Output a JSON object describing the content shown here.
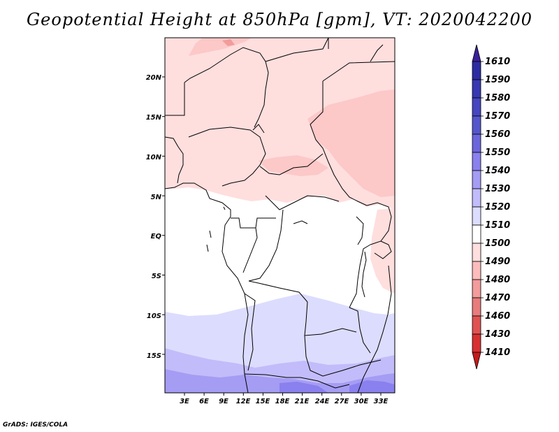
{
  "title": "Geopotential Height at 850hPa [gpm], VT: 2020042200",
  "credit": "GrADS: IGES/COLA",
  "lat_labels": [
    "20N",
    "15N",
    "10N",
    "5N",
    "EQ",
    "5S",
    "10S",
    "15S"
  ],
  "lon_labels": [
    "3E",
    "6E",
    "9E",
    "12E",
    "15E",
    "18E",
    "21E",
    "24E",
    "27E",
    "30E",
    "33E"
  ],
  "colorbar": {
    "labels": [
      "1610",
      "1590",
      "1580",
      "1570",
      "1560",
      "1550",
      "1540",
      "1530",
      "1520",
      "1510",
      "1500",
      "1490",
      "1480",
      "1470",
      "1460",
      "1430",
      "1410"
    ],
    "colors": [
      "#3c1f9a",
      "#2c2ca2",
      "#3838b2",
      "#4646c0",
      "#5656cc",
      "#6c66dc",
      "#8a80ee",
      "#a59cf4",
      "#c2bcfa",
      "#dcdcfe",
      "#ffffff",
      "#ffdede",
      "#fcbcbc",
      "#f29c9c",
      "#e87c7c",
      "#e05252",
      "#d83030",
      "#c41a1a"
    ]
  }
}
